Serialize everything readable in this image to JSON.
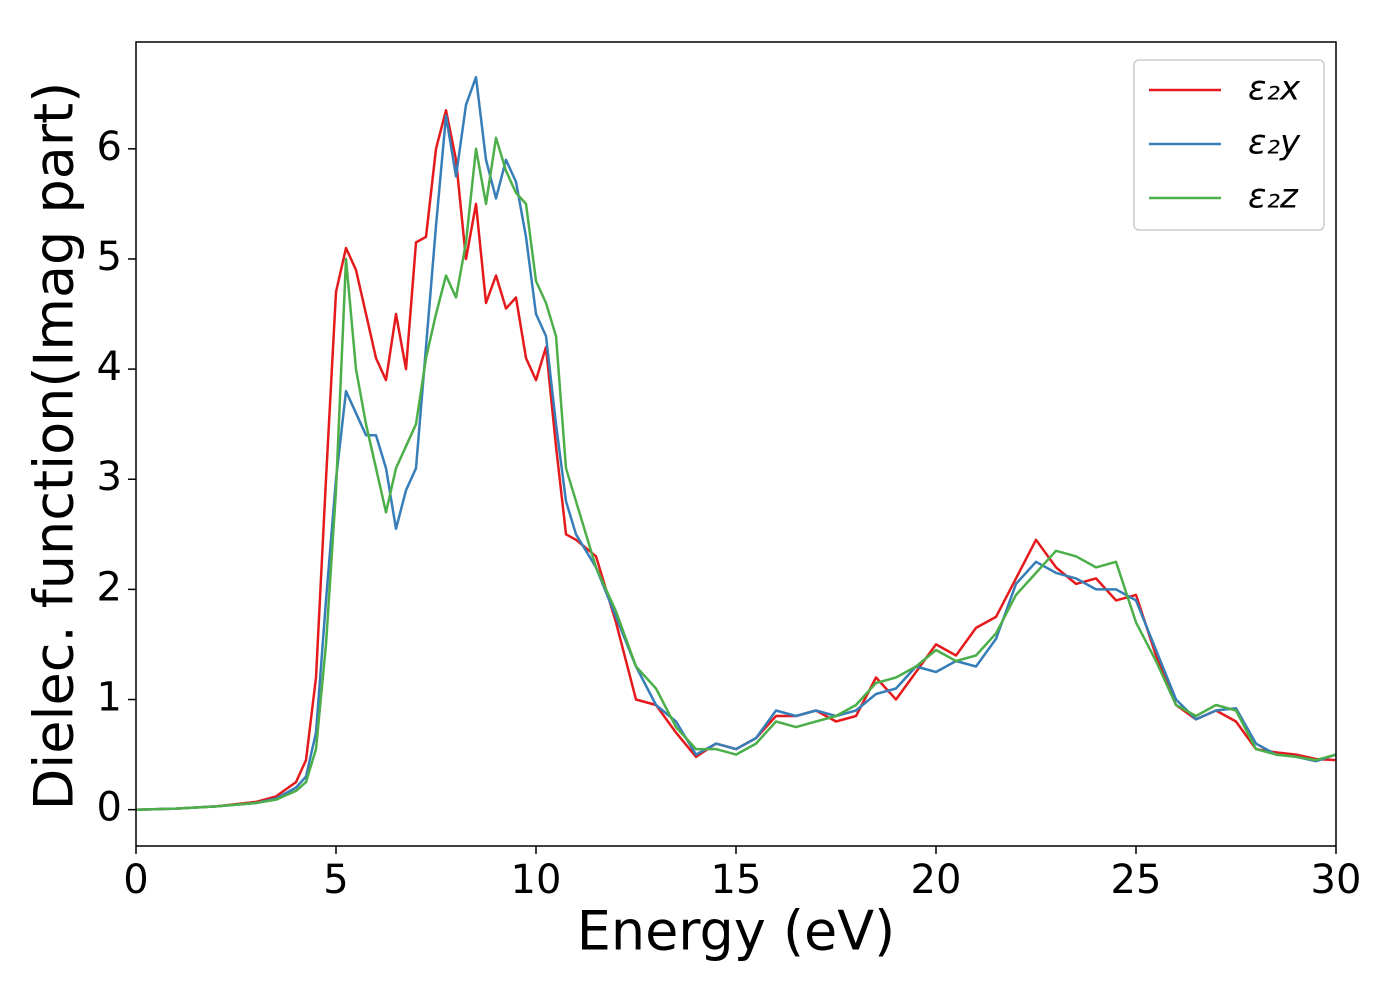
{
  "chart_data": {
    "type": "line",
    "xlabel": "Energy (eV)",
    "ylabel": "Dielec. function(Imag part)",
    "x": [
      0,
      1,
      2,
      3,
      3.5,
      4,
      4.25,
      4.5,
      4.75,
      5,
      5.25,
      5.5,
      5.75,
      6,
      6.25,
      6.5,
      6.75,
      7,
      7.25,
      7.5,
      7.75,
      8,
      8.25,
      8.5,
      8.75,
      9,
      9.25,
      9.5,
      9.75,
      10,
      10.25,
      10.5,
      10.75,
      11,
      11.5,
      12,
      12.5,
      13,
      13.5,
      14,
      14.5,
      15,
      15.5,
      16,
      16.5,
      17,
      17.5,
      18,
      18.5,
      19,
      19.5,
      20,
      20.5,
      21,
      21.5,
      22,
      22.5,
      23,
      23.5,
      24,
      24.5,
      25,
      25.5,
      26,
      26.5,
      27,
      27.5,
      28,
      28.5,
      29,
      29.5,
      30
    ],
    "series": [
      {
        "name": "ε₂x",
        "color": "#e41a1c",
        "values": [
          0,
          0.01,
          0.03,
          0.07,
          0.12,
          0.25,
          0.45,
          1.2,
          3.0,
          4.7,
          5.1,
          4.9,
          4.5,
          4.1,
          3.9,
          4.5,
          4.0,
          5.15,
          5.2,
          6.0,
          6.35,
          5.9,
          5.0,
          5.5,
          4.6,
          4.85,
          4.55,
          4.65,
          4.1,
          3.9,
          4.2,
          3.3,
          2.5,
          2.45,
          2.3,
          1.7,
          1.0,
          0.95,
          0.7,
          0.48,
          0.6,
          0.55,
          0.65,
          0.85,
          0.85,
          0.9,
          0.8,
          0.85,
          1.2,
          1.0,
          1.25,
          1.5,
          1.4,
          1.65,
          1.75,
          2.1,
          2.45,
          2.2,
          2.05,
          2.1,
          1.9,
          1.95,
          1.4,
          0.95,
          0.82,
          0.9,
          0.8,
          0.55,
          0.52,
          0.5,
          0.46,
          0.45
        ]
      },
      {
        "name": "ε₂y",
        "color": "#377eb8",
        "values": [
          0,
          0.01,
          0.03,
          0.06,
          0.1,
          0.2,
          0.3,
          0.7,
          1.9,
          3.0,
          3.8,
          3.6,
          3.4,
          3.4,
          3.1,
          2.55,
          2.9,
          3.1,
          4.2,
          5.3,
          6.3,
          5.75,
          6.4,
          6.65,
          5.9,
          5.55,
          5.9,
          5.7,
          5.2,
          4.5,
          4.3,
          3.5,
          2.8,
          2.5,
          2.2,
          1.75,
          1.3,
          0.95,
          0.8,
          0.5,
          0.6,
          0.55,
          0.65,
          0.9,
          0.85,
          0.9,
          0.85,
          0.9,
          1.05,
          1.1,
          1.3,
          1.25,
          1.35,
          1.3,
          1.55,
          2.05,
          2.25,
          2.15,
          2.1,
          2.0,
          2.0,
          1.9,
          1.45,
          1.0,
          0.82,
          0.9,
          0.92,
          0.6,
          0.5,
          0.48,
          0.44,
          0.5
        ]
      },
      {
        "name": "ε₂z",
        "color": "#4daf4a",
        "values": [
          0,
          0.01,
          0.03,
          0.06,
          0.09,
          0.17,
          0.25,
          0.55,
          1.5,
          2.9,
          5.0,
          4.0,
          3.5,
          3.1,
          2.7,
          3.1,
          3.3,
          3.5,
          4.1,
          4.5,
          4.85,
          4.65,
          5.15,
          6.0,
          5.5,
          6.1,
          5.8,
          5.6,
          5.5,
          4.8,
          4.6,
          4.3,
          3.1,
          2.8,
          2.2,
          1.8,
          1.3,
          1.1,
          0.75,
          0.55,
          0.55,
          0.5,
          0.6,
          0.8,
          0.75,
          0.8,
          0.85,
          0.95,
          1.15,
          1.2,
          1.3,
          1.45,
          1.35,
          1.4,
          1.6,
          1.95,
          2.15,
          2.35,
          2.3,
          2.2,
          2.25,
          1.7,
          1.35,
          0.95,
          0.85,
          0.95,
          0.9,
          0.55,
          0.5,
          0.48,
          0.45,
          0.5
        ]
      }
    ],
    "xlim": [
      0,
      30
    ],
    "xticks": [
      0,
      5,
      10,
      15,
      20,
      25,
      30
    ],
    "ylim": [
      -0.33,
      6.97
    ],
    "yticks": [
      0,
      1,
      2,
      3,
      4,
      5,
      6
    ],
    "legend": "upper right"
  }
}
